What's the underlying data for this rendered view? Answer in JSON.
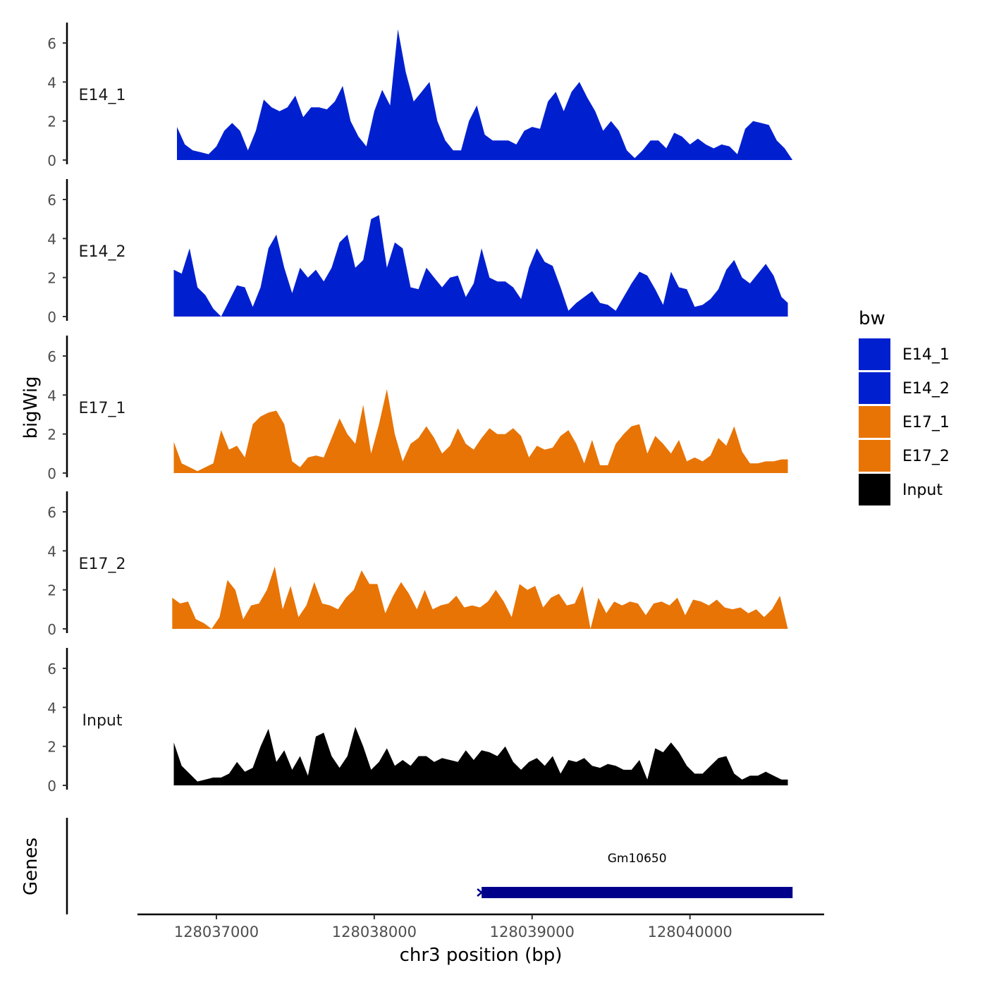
{
  "chart_data": {
    "type": "area",
    "xlabel": "chr3 position (bp)",
    "ylabel": "bigWig",
    "genes_label": "Genes",
    "xlim": [
      128036500,
      128040850
    ],
    "x_ticks": [
      128037000,
      128038000,
      128039000,
      128040000
    ],
    "x_tick_labels": [
      "128037000",
      "128038000",
      "128039000",
      "128040000"
    ],
    "ylim": [
      0,
      7
    ],
    "y_ticks": [
      0,
      2,
      4,
      6
    ],
    "y_tick_labels": [
      "0",
      "2",
      "4",
      "6"
    ],
    "legend": {
      "title": "bw",
      "position": "right",
      "entries": [
        {
          "label": "E14_1",
          "color": "#0020d0"
        },
        {
          "label": "E14_2",
          "color": "#0020d0"
        },
        {
          "label": "E17_1",
          "color": "#e87405"
        },
        {
          "label": "E17_2",
          "color": "#e87405"
        },
        {
          "label": "Input",
          "color": "#000000"
        }
      ]
    },
    "series": [
      {
        "name": "E14_1",
        "color": "#0020d0",
        "x": [
          128036750,
          128036800,
          128036850,
          128036900,
          128036950,
          128037000,
          128037050,
          128037100,
          128037150,
          128037200,
          128037250,
          128037300,
          128037350,
          128037400,
          128037450,
          128037500,
          128037550,
          128037600,
          128037650,
          128037700,
          128037750,
          128037800,
          128037850,
          128037900,
          128037950,
          128038000,
          128038050,
          128038100,
          128038150,
          128038200,
          128038250,
          128038300,
          128038350,
          128038400,
          128038450,
          128038500,
          128038550,
          128038600,
          128038650,
          128038700,
          128038750,
          128038800,
          128038850,
          128038900,
          128038950,
          128039000,
          128039050,
          128039100,
          128039150,
          128039200,
          128039250,
          128039300,
          128039350,
          128039400,
          128039450,
          128039500,
          128039550,
          128039600,
          128039650,
          128039700,
          128039750,
          128039800,
          128039850,
          128039900,
          128039950,
          128040000,
          128040050,
          128040100,
          128040150,
          128040200,
          128040250,
          128040300,
          128040350,
          128040400,
          128040450,
          128040500,
          128040550,
          128040600,
          128040650
        ],
        "y": [
          1.7,
          0.8,
          0.5,
          0.4,
          0.3,
          0.7,
          1.5,
          1.9,
          1.5,
          0.5,
          1.5,
          3.1,
          2.7,
          2.5,
          2.7,
          3.3,
          2.2,
          2.7,
          2.7,
          2.6,
          3.0,
          3.8,
          2.0,
          1.2,
          0.7,
          2.5,
          3.6,
          2.8,
          6.7,
          4.5,
          3.0,
          3.5,
          4.0,
          2.0,
          1.0,
          0.5,
          0.5,
          2.0,
          2.8,
          1.3,
          1.0,
          1.0,
          1.0,
          0.8,
          1.5,
          1.7,
          1.6,
          3.0,
          3.5,
          2.5,
          3.5,
          4.0,
          3.2,
          2.5,
          1.5,
          2.0,
          1.5,
          0.5,
          0.1,
          0.5,
          1.0,
          1.0,
          0.6,
          1.4,
          1.2,
          0.8,
          1.1,
          0.8,
          0.6,
          0.8,
          0.7,
          0.3,
          1.6,
          2.0,
          1.9,
          1.8,
          1.0,
          0.6,
          0.0
        ]
      },
      {
        "name": "E14_2",
        "color": "#0020d0",
        "x": [
          128036730,
          128036780,
          128036830,
          128036880,
          128036930,
          128036980,
          128037030,
          128037080,
          128037130,
          128037180,
          128037230,
          128037280,
          128037330,
          128037380,
          128037430,
          128037480,
          128037530,
          128037580,
          128037630,
          128037680,
          128037730,
          128037780,
          128037830,
          128037880,
          128037930,
          128037980,
          128038030,
          128038080,
          128038130,
          128038180,
          128038230,
          128038280,
          128038330,
          128038380,
          128038430,
          128038480,
          128038530,
          128038580,
          128038630,
          128038680,
          128038730,
          128038780,
          128038830,
          128038880,
          128038930,
          128038980,
          128039030,
          128039080,
          128039130,
          128039180,
          128039230,
          128039280,
          128039330,
          128039380,
          128039430,
          128039480,
          128039530,
          128039580,
          128039630,
          128039680,
          128039730,
          128039780,
          128039830,
          128039880,
          128039930,
          128039980,
          128040030,
          128040080,
          128040130,
          128040180,
          128040230,
          128040280,
          128040330,
          128040380,
          128040430,
          128040480,
          128040530,
          128040580,
          128040620
        ],
        "y": [
          2.4,
          2.2,
          3.5,
          1.5,
          1.1,
          0.4,
          0.0,
          0.8,
          1.6,
          1.5,
          0.5,
          1.5,
          3.5,
          4.2,
          2.5,
          1.2,
          2.5,
          2.0,
          2.4,
          1.8,
          2.5,
          3.8,
          4.2,
          2.5,
          2.9,
          5.0,
          5.2,
          2.5,
          3.8,
          3.5,
          1.5,
          1.4,
          2.5,
          2.0,
          1.5,
          2.0,
          2.1,
          1.0,
          1.7,
          3.5,
          2.0,
          1.8,
          1.8,
          1.5,
          0.9,
          2.5,
          3.5,
          2.8,
          2.6,
          1.5,
          0.3,
          0.7,
          1.0,
          1.3,
          0.7,
          0.6,
          0.3,
          1.0,
          1.7,
          2.3,
          2.1,
          1.4,
          0.6,
          2.3,
          1.5,
          1.4,
          0.5,
          0.6,
          0.9,
          1.4,
          2.4,
          2.9,
          2.0,
          1.7,
          2.2,
          2.7,
          2.1,
          1.0,
          0.7
        ]
      },
      {
        "name": "E17_1",
        "color": "#e87405",
        "x": [
          128036730,
          128036780,
          128036830,
          128036880,
          128036930,
          128036980,
          128037030,
          128037080,
          128037130,
          128037180,
          128037230,
          128037280,
          128037330,
          128037380,
          128037430,
          128037480,
          128037530,
          128037580,
          128037630,
          128037680,
          128037730,
          128037780,
          128037830,
          128037880,
          128037930,
          128037980,
          128038030,
          128038080,
          128038130,
          128038180,
          128038230,
          128038280,
          128038330,
          128038380,
          128038430,
          128038480,
          128038530,
          128038580,
          128038630,
          128038680,
          128038730,
          128038780,
          128038830,
          128038880,
          128038930,
          128038980,
          128039030,
          128039080,
          128039130,
          128039180,
          128039230,
          128039280,
          128039330,
          128039380,
          128039430,
          128039480,
          128039530,
          128039580,
          128039630,
          128039680,
          128039730,
          128039780,
          128039830,
          128039880,
          128039930,
          128039980,
          128040030,
          128040080,
          128040130,
          128040180,
          128040230,
          128040280,
          128040330,
          128040380,
          128040430,
          128040480,
          128040530,
          128040580,
          128040620
        ],
        "y": [
          1.6,
          0.5,
          0.3,
          0.1,
          0.3,
          0.5,
          2.2,
          1.2,
          1.4,
          0.8,
          2.5,
          2.9,
          3.1,
          3.2,
          2.5,
          0.6,
          0.3,
          0.8,
          0.9,
          0.8,
          1.8,
          2.8,
          2.0,
          1.5,
          3.5,
          1.0,
          2.5,
          4.3,
          2.0,
          0.6,
          1.5,
          1.8,
          2.4,
          1.8,
          1.0,
          1.4,
          2.3,
          1.5,
          1.2,
          1.8,
          2.3,
          2.0,
          2.0,
          2.3,
          1.9,
          0.8,
          1.4,
          1.2,
          1.3,
          1.9,
          2.2,
          1.5,
          0.5,
          1.7,
          0.4,
          0.4,
          1.5,
          2.0,
          2.4,
          2.5,
          1.0,
          1.9,
          1.5,
          1.0,
          1.7,
          0.6,
          0.8,
          0.6,
          0.9,
          1.8,
          1.4,
          2.4,
          1.1,
          0.5,
          0.5,
          0.6,
          0.6,
          0.7,
          0.7
        ]
      },
      {
        "name": "E17_2",
        "color": "#e87405",
        "x": [
          128036720,
          128036770,
          128036820,
          128036870,
          128036920,
          128036970,
          128037020,
          128037070,
          128037120,
          128037170,
          128037220,
          128037270,
          128037320,
          128037370,
          128037420,
          128037470,
          128037520,
          128037570,
          128037620,
          128037670,
          128037720,
          128037770,
          128037820,
          128037870,
          128037920,
          128037970,
          128038020,
          128038070,
          128038120,
          128038170,
          128038220,
          128038270,
          128038320,
          128038370,
          128038420,
          128038470,
          128038520,
          128038570,
          128038620,
          128038670,
          128038720,
          128038770,
          128038820,
          128038870,
          128038920,
          128038970,
          128039020,
          128039070,
          128039120,
          128039170,
          128039220,
          128039270,
          128039320,
          128039370,
          128039420,
          128039470,
          128039520,
          128039570,
          128039620,
          128039670,
          128039720,
          128039770,
          128039820,
          128039870,
          128039920,
          128039970,
          128040020,
          128040070,
          128040120,
          128040170,
          128040220,
          128040270,
          128040320,
          128040370,
          128040420,
          128040470,
          128040520,
          128040570,
          128040620
        ],
        "y": [
          1.6,
          1.3,
          1.4,
          0.5,
          0.3,
          0.0,
          0.6,
          2.5,
          2.0,
          0.5,
          1.2,
          1.3,
          2.0,
          3.2,
          1.0,
          2.2,
          0.6,
          1.2,
          2.4,
          1.3,
          1.2,
          1.0,
          1.6,
          2.0,
          3.0,
          2.3,
          2.3,
          0.8,
          1.7,
          2.4,
          1.8,
          1.0,
          2.0,
          1.0,
          1.2,
          1.3,
          1.7,
          1.1,
          1.2,
          1.1,
          1.4,
          2.0,
          1.4,
          0.6,
          2.3,
          2.0,
          2.2,
          1.1,
          1.6,
          1.8,
          1.2,
          1.3,
          2.2,
          0.0,
          1.6,
          0.8,
          1.4,
          1.2,
          1.4,
          1.3,
          0.7,
          1.3,
          1.4,
          1.2,
          1.6,
          0.7,
          1.5,
          1.4,
          1.2,
          1.5,
          1.1,
          1.0,
          1.1,
          0.8,
          1.0,
          0.6,
          1.0,
          1.7,
          0.0
        ]
      },
      {
        "name": "Input",
        "color": "#000000",
        "x": [
          128036730,
          128036780,
          128036830,
          128036880,
          128036930,
          128036980,
          128037030,
          128037080,
          128037130,
          128037180,
          128037230,
          128037280,
          128037330,
          128037380,
          128037430,
          128037480,
          128037530,
          128037580,
          128037630,
          128037680,
          128037730,
          128037780,
          128037830,
          128037880,
          128037930,
          128037980,
          128038030,
          128038080,
          128038130,
          128038180,
          128038230,
          128038280,
          128038330,
          128038380,
          128038430,
          128038480,
          128038530,
          128038580,
          128038630,
          128038680,
          128038730,
          128038780,
          128038830,
          128038880,
          128038930,
          128038980,
          128039030,
          128039080,
          128039130,
          128039180,
          128039230,
          128039280,
          128039330,
          128039380,
          128039430,
          128039480,
          128039530,
          128039580,
          128039630,
          128039680,
          128039730,
          128039780,
          128039830,
          128039880,
          128039930,
          128039980,
          128040030,
          128040080,
          128040130,
          128040180,
          128040230,
          128040280,
          128040330,
          128040380,
          128040430,
          128040480,
          128040530,
          128040580,
          128040620
        ],
        "y": [
          2.2,
          1.0,
          0.6,
          0.2,
          0.3,
          0.4,
          0.4,
          0.6,
          1.2,
          0.7,
          0.9,
          2.0,
          2.9,
          1.2,
          1.8,
          0.8,
          1.5,
          0.5,
          2.5,
          2.7,
          1.5,
          0.9,
          1.5,
          3.0,
          2.0,
          0.8,
          1.2,
          1.9,
          1.0,
          1.3,
          1.0,
          1.5,
          1.5,
          1.2,
          1.4,
          1.3,
          1.2,
          1.8,
          1.3,
          1.8,
          1.7,
          1.5,
          2.0,
          1.2,
          0.8,
          1.2,
          1.4,
          1.0,
          1.5,
          0.6,
          1.3,
          1.2,
          1.4,
          1.0,
          0.9,
          1.1,
          1.0,
          0.8,
          0.8,
          1.3,
          0.3,
          1.9,
          1.7,
          2.2,
          1.7,
          1.0,
          0.6,
          0.6,
          1.0,
          1.4,
          1.5,
          0.6,
          0.3,
          0.5,
          0.5,
          0.7,
          0.5,
          0.3,
          0.3
        ]
      }
    ],
    "genes": [
      {
        "name": "Gm10650",
        "start": 128038680,
        "end": 128040650,
        "strand": "+",
        "color": "#00008b"
      }
    ]
  }
}
